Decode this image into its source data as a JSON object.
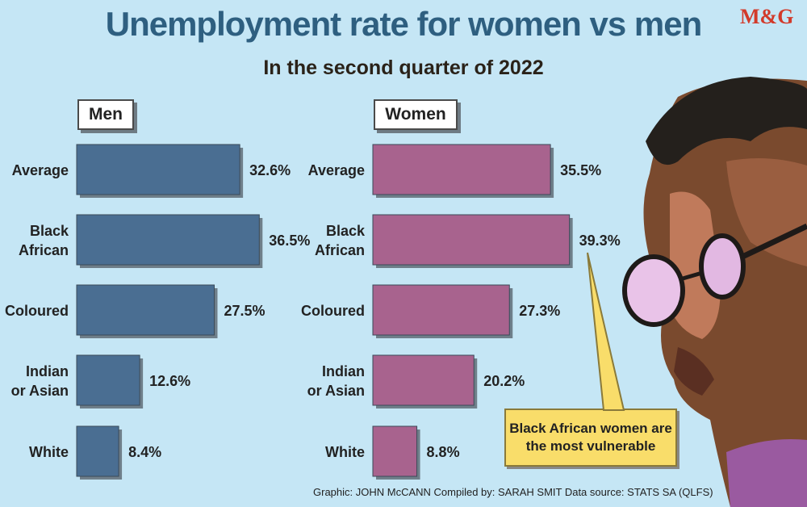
{
  "title": "Unemployment rate for women vs men",
  "subtitle": "In the second quarter of 2022",
  "logo": "M&G",
  "credits": "Graphic: JOHN McCANN  Compiled by: SARAH SMIT  Data source: STATS SA (QLFS)",
  "callout": "Black African women are the most vulnerable",
  "colors": {
    "men": "#4a6e92",
    "women": "#a8638e",
    "background": "#c5e6f5"
  },
  "chart_data": [
    {
      "type": "bar",
      "orientation": "horizontal",
      "title": "Men",
      "categories": [
        "Average",
        "Black African",
        "Coloured",
        "Indian or Asian",
        "White"
      ],
      "category_lines": [
        [
          "Average"
        ],
        [
          "Black",
          "African"
        ],
        [
          "Coloured"
        ],
        [
          "Indian",
          "or Asian"
        ],
        [
          "White"
        ]
      ],
      "values": [
        32.6,
        36.5,
        27.5,
        12.6,
        8.4
      ],
      "labels": [
        "32.6%",
        "36.5%",
        "27.5%",
        "12.6%",
        "8.4%"
      ],
      "unit": "%"
    },
    {
      "type": "bar",
      "orientation": "horizontal",
      "title": "Women",
      "categories": [
        "Average",
        "Black African",
        "Coloured",
        "Indian or Asian",
        "White"
      ],
      "category_lines": [
        [
          "Average"
        ],
        [
          "Black",
          "African"
        ],
        [
          "Coloured"
        ],
        [
          "Indian",
          "or Asian"
        ],
        [
          "White"
        ]
      ],
      "values": [
        35.5,
        39.3,
        27.3,
        20.2,
        8.8
      ],
      "labels": [
        "35.5%",
        "39.3%",
        "27.3%",
        "20.2%",
        "8.8%"
      ],
      "unit": "%"
    }
  ]
}
